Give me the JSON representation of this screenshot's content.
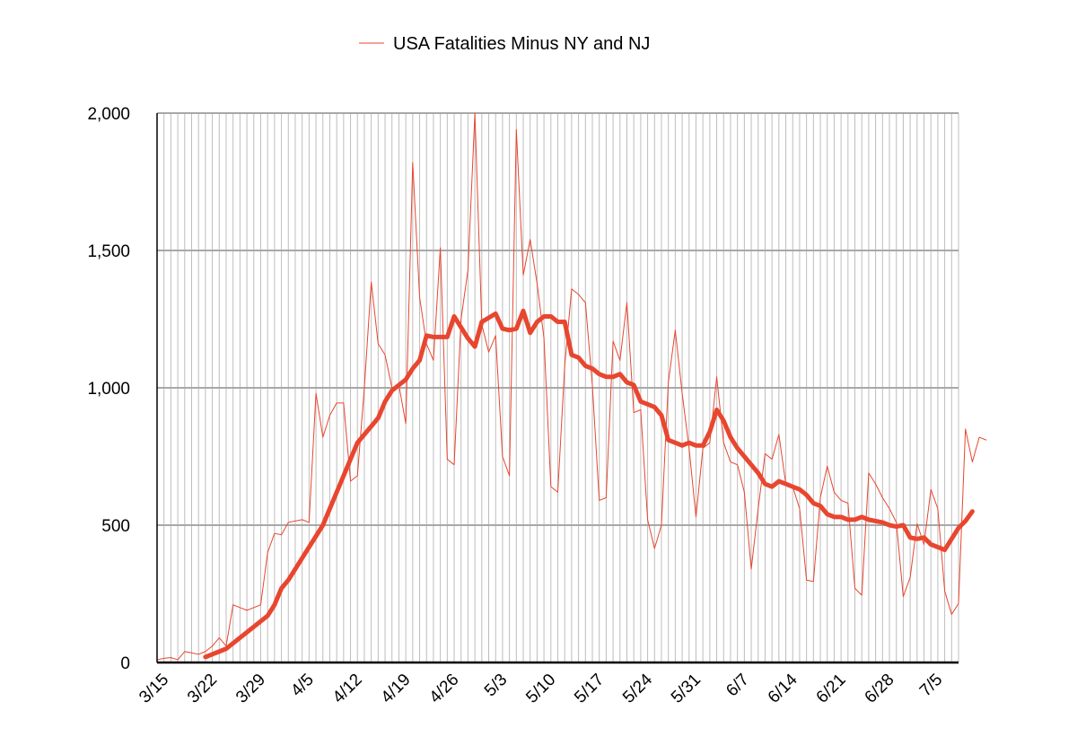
{
  "chart_data": {
    "type": "line",
    "legend": {
      "label": "USA Fatalities Minus NY and NJ",
      "placement": "top-center"
    },
    "x_start": "3/14",
    "x_end": "7/8",
    "x_tick_labels": [
      "3/15",
      "3/22",
      "3/29",
      "4/5",
      "4/12",
      "4/19",
      "4/26",
      "5/3",
      "5/10",
      "5/17",
      "5/24",
      "5/31",
      "6/7",
      "6/14",
      "6/21",
      "6/28",
      "7/5"
    ],
    "ylim": [
      0,
      2000
    ],
    "y_tick_values": [
      0,
      500,
      1000,
      1500,
      2000
    ],
    "y_tick_labels": [
      "0",
      "500",
      "1,000",
      "1,500",
      "2,000"
    ],
    "grid": {
      "vertical": "daily",
      "horizontal": "major"
    },
    "colors": {
      "series": "#e8462f",
      "grid_minor": "#bdbdbd",
      "grid_major": "#a8a8a8",
      "axis": "#000000"
    },
    "series": [
      {
        "name": "USA Fatalities Minus NY and NJ",
        "style": "thin",
        "values": [
          10,
          15,
          18,
          10,
          40,
          35,
          30,
          40,
          60,
          90,
          60,
          210,
          200,
          190,
          200,
          210,
          400,
          470,
          465,
          510,
          515,
          520,
          510,
          980,
          820,
          900,
          945,
          945,
          660,
          680,
          1000,
          1385,
          1160,
          1120,
          1000,
          1010,
          870,
          1820,
          1330,
          1160,
          1100,
          1510,
          740,
          720,
          1250,
          1430,
          2000,
          1230,
          1130,
          1190,
          750,
          680,
          1940,
          1410,
          1540,
          1380,
          1180,
          640,
          620,
          1080,
          1360,
          1340,
          1310,
          1010,
          590,
          600,
          1170,
          1100,
          1310,
          910,
          920,
          520,
          415,
          500,
          1020,
          1210,
          980,
          780,
          530,
          780,
          800,
          1040,
          800,
          730,
          720,
          620,
          340,
          560,
          760,
          740,
          830,
          650,
          640,
          560,
          300,
          295,
          600,
          715,
          620,
          590,
          580,
          270,
          245,
          690,
          650,
          600,
          560,
          510,
          240,
          310,
          505,
          430,
          630,
          560,
          260,
          175,
          215,
          850,
          730,
          820,
          810
        ]
      },
      {
        "name": "",
        "style": "thick",
        "start_offset": 7,
        "values": [
          20,
          30,
          40,
          50,
          70,
          90,
          110,
          130,
          150,
          170,
          210,
          270,
          300,
          340,
          380,
          420,
          460,
          500,
          560,
          620,
          680,
          740,
          800,
          830,
          860,
          890,
          950,
          990,
          1010,
          1030,
          1070,
          1100,
          1190,
          1185,
          1185,
          1185,
          1260,
          1220,
          1180,
          1150,
          1240,
          1255,
          1270,
          1215,
          1210,
          1215,
          1280,
          1200,
          1240,
          1260,
          1260,
          1240,
          1240,
          1120,
          1110,
          1080,
          1070,
          1050,
          1040,
          1040,
          1050,
          1020,
          1010,
          950,
          940,
          930,
          900,
          810,
          800,
          790,
          800,
          790,
          790,
          840,
          920,
          880,
          820,
          780,
          750,
          720,
          690,
          650,
          640,
          660,
          650,
          640,
          630,
          610,
          580,
          570,
          540,
          530,
          530,
          520,
          520,
          530,
          520,
          515,
          510,
          500,
          495,
          500,
          455,
          450,
          455,
          430,
          420,
          410,
          450,
          490,
          515,
          550
        ]
      }
    ]
  }
}
